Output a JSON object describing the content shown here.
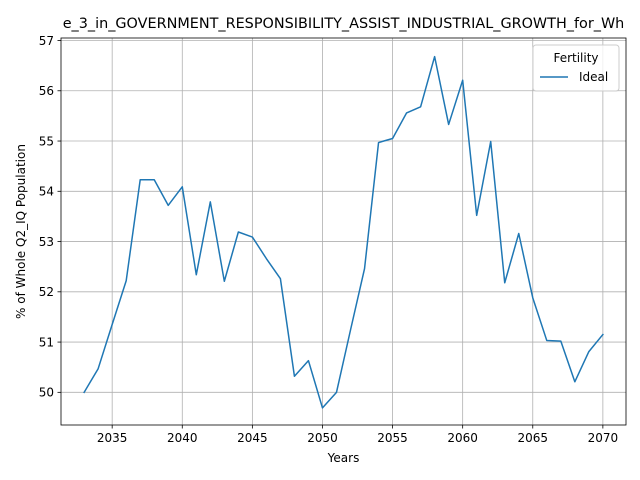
{
  "chart_data": {
    "type": "line",
    "title": "e_3_in_GOVERNMENT_RESPONSIBILITY_ASSIST_INDUSTRIAL_GROWTH_for_Wh",
    "xlabel": "Years",
    "ylabel": "% of Whole Q2_IQ Population",
    "xlim": [
      2031.35,
      2071.65
    ],
    "ylim": [
      49.35,
      57.05
    ],
    "xticks": [
      2035,
      2040,
      2045,
      2050,
      2055,
      2060,
      2065,
      2070
    ],
    "yticks": [
      50,
      51,
      52,
      53,
      54,
      55,
      56,
      57
    ],
    "grid": true,
    "legend": {
      "title": "Fertility",
      "placement": "top-right"
    },
    "series": [
      {
        "name": "Ideal",
        "color": "#1f77b4",
        "x": [
          2033,
          2034,
          2035,
          2036,
          2037,
          2038,
          2039,
          2040,
          2041,
          2042,
          2043,
          2044,
          2045,
          2046,
          2047,
          2048,
          2049,
          2050,
          2051,
          2052,
          2053,
          2054,
          2055,
          2056,
          2057,
          2058,
          2059,
          2060,
          2061,
          2062,
          2063,
          2064,
          2065,
          2066,
          2067,
          2068,
          2069,
          2070
        ],
        "y": [
          50.0,
          50.47,
          51.35,
          52.22,
          54.23,
          54.23,
          53.72,
          54.09,
          52.34,
          53.79,
          52.21,
          53.19,
          53.09,
          52.66,
          52.26,
          50.32,
          50.63,
          49.69,
          50.0,
          51.24,
          52.46,
          54.97,
          55.05,
          55.56,
          55.68,
          56.68,
          55.33,
          56.21,
          53.52,
          54.99,
          52.18,
          53.16,
          51.88,
          51.03,
          51.02,
          50.21,
          50.81,
          51.15
        ]
      }
    ]
  }
}
